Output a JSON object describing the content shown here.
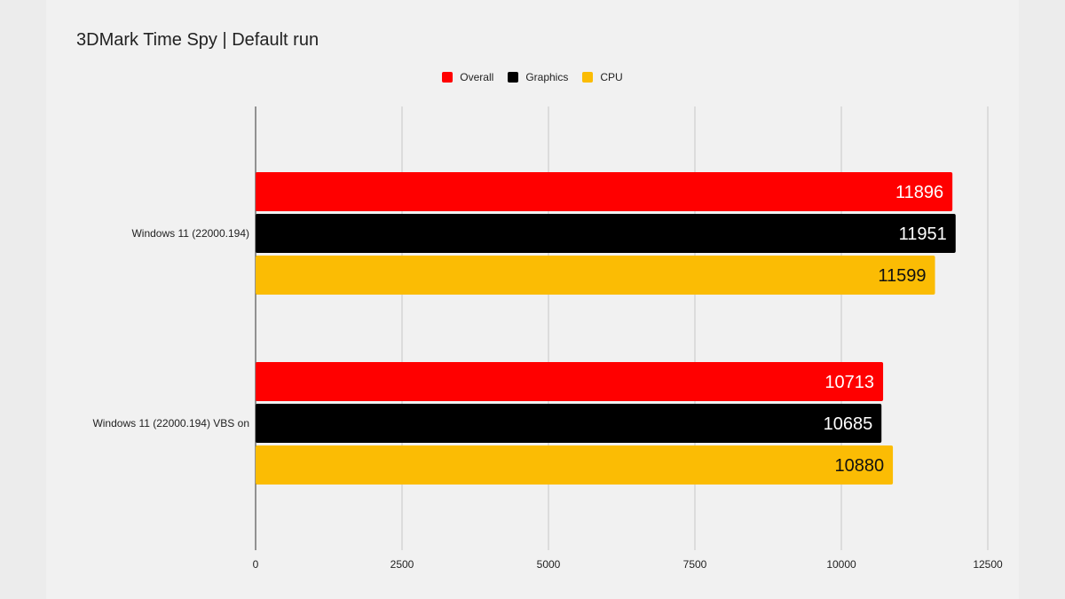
{
  "chart_data": {
    "type": "bar",
    "orientation": "horizontal",
    "title": "3DMark Time Spy | Default run",
    "categories": [
      "Windows 11 (22000.194)",
      "Windows 11 (22000.194) VBS on"
    ],
    "series": [
      {
        "name": "Overall",
        "color": "#ff0000",
        "values": [
          11896,
          10713
        ]
      },
      {
        "name": "Graphics",
        "color": "#000000",
        "values": [
          11951,
          10685
        ]
      },
      {
        "name": "CPU",
        "color": "#fbbc04",
        "values": [
          11599,
          10880
        ]
      }
    ],
    "xlim": [
      0,
      12500
    ],
    "x_ticks": [
      0,
      2500,
      5000,
      7500,
      10000,
      12500
    ],
    "xlabel": "",
    "ylabel": "",
    "grid": true,
    "legend_position": "top-center",
    "data_labels": true
  }
}
